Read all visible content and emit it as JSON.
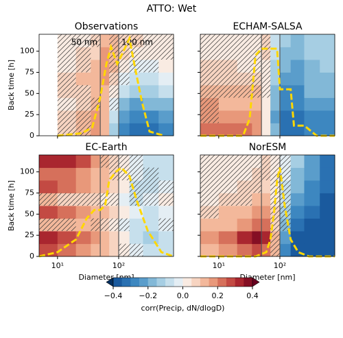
{
  "chart_data": {
    "type": "heatmap",
    "title": "ATTO: Wet",
    "xlabel": "Diameter [nm]",
    "ylabel": "Back time [h]",
    "log_x": true,
    "xlim": [
      5,
      790
    ],
    "ylim": [
      0,
      120
    ],
    "xticks": [
      {
        "value": 10,
        "label": "10¹"
      },
      {
        "value": 100,
        "label": "10²"
      }
    ],
    "yticks": [
      0,
      25,
      50,
      75,
      100
    ],
    "x_edges": [
      5,
      10,
      20,
      35,
      50,
      70,
      100,
      150,
      250,
      450,
      790
    ],
    "y_edges": [
      0,
      15,
      30,
      45,
      60,
      75,
      90,
      105,
      120
    ],
    "hatch_color": "#333333",
    "colorbar": {
      "label": "corr(Precip, dN/dlogD)",
      "levels": [
        -0.4,
        -0.35,
        -0.3,
        -0.25,
        -0.2,
        -0.15,
        -0.1,
        -0.05,
        0,
        0.05,
        0.1,
        0.15,
        0.2,
        0.25,
        0.3,
        0.35,
        0.4
      ],
      "colors": [
        "#1a5a9e",
        "#2a71b2",
        "#3d87c0",
        "#5a9dcb",
        "#82b8d7",
        "#a6cee3",
        "#c6dfec",
        "#e4eef4",
        "#f9ebe2",
        "#f7d4c1",
        "#f3b89b",
        "#e8987a",
        "#d6705b",
        "#c34a43",
        "#a9262f",
        "#850f24"
      ],
      "under": "#053061",
      "over": "#67001f",
      "ticks": [
        {
          "value": -0.4,
          "label": "−0.4"
        },
        {
          "value": -0.2,
          "label": "−0.2"
        },
        {
          "value": 0,
          "label": "0.0"
        },
        0.2,
        0.4
      ]
    },
    "panels": [
      {
        "title": "Observations",
        "annotations": [
          "50 nm",
          "100 nm"
        ],
        "vlines": [
          50,
          100
        ],
        "values": [
          [
            null,
            0.05,
            0.1,
            0.15,
            0.1,
            -0.15,
            -0.3,
            -0.35,
            -0.35,
            -0.3
          ],
          [
            null,
            0.05,
            0.1,
            0.15,
            0.1,
            -0.1,
            -0.25,
            -0.3,
            -0.3,
            -0.25
          ],
          [
            null,
            0.0,
            0.05,
            0.1,
            0.1,
            -0.05,
            -0.2,
            -0.25,
            -0.2,
            -0.2
          ],
          [
            null,
            0.05,
            0.05,
            0.1,
            0.1,
            0.0,
            -0.1,
            -0.15,
            -0.15,
            -0.1
          ],
          [
            null,
            0.05,
            0.1,
            0.1,
            0.15,
            0.05,
            -0.05,
            -0.1,
            -0.1,
            -0.05
          ],
          [
            null,
            0.0,
            0.05,
            0.1,
            0.15,
            0.1,
            0.0,
            -0.05,
            -0.05,
            0.0
          ],
          [
            null,
            0.0,
            0.05,
            0.05,
            0.15,
            0.1,
            0.05,
            0.0,
            0.0,
            0.0
          ],
          [
            null,
            0.0,
            0.0,
            0.05,
            0.1,
            0.1,
            0.05,
            0.05,
            0.0,
            0.0
          ]
        ],
        "hatch": [
          [
            0,
            1,
            1,
            0,
            0,
            0,
            0,
            0,
            0,
            0
          ],
          [
            0,
            1,
            1,
            0,
            0,
            0,
            0,
            0,
            0,
            0
          ],
          [
            0,
            1,
            1,
            1,
            0,
            1,
            0,
            0,
            0,
            0
          ],
          [
            0,
            1,
            1,
            0,
            0,
            1,
            0,
            0,
            0,
            0
          ],
          [
            0,
            1,
            0,
            0,
            0,
            1,
            1,
            0,
            0,
            0
          ],
          [
            0,
            1,
            1,
            0,
            0,
            1,
            1,
            1,
            1,
            0
          ],
          [
            0,
            1,
            1,
            0,
            0,
            1,
            1,
            1,
            1,
            1
          ],
          [
            0,
            1,
            1,
            1,
            0,
            1,
            1,
            1,
            1,
            1
          ]
        ],
        "line": {
          "color": "#ffd700",
          "x": [
            10,
            25,
            37,
            50,
            63,
            75,
            95,
            120,
            150,
            180,
            240,
            320,
            550
          ],
          "y": [
            0,
            3,
            10,
            45,
            85,
            105,
            85,
            100,
            115,
            85,
            40,
            5,
            0
          ]
        }
      },
      {
        "title": "ECHAM-SALSA",
        "vlines": [
          50,
          100
        ],
        "values": [
          [
            0.2,
            0.2,
            0.2,
            0.15,
            0.0,
            -0.2,
            -0.35,
            -0.35,
            -0.3,
            -0.3
          ],
          [
            0.15,
            0.15,
            0.15,
            0.15,
            0.0,
            -0.25,
            -0.35,
            -0.35,
            -0.3,
            -0.3
          ],
          [
            0.15,
            0.1,
            0.1,
            0.1,
            0.0,
            -0.2,
            -0.3,
            -0.3,
            -0.25,
            -0.25
          ],
          [
            0.1,
            0.1,
            0.1,
            0.1,
            0.0,
            -0.2,
            -0.3,
            -0.3,
            -0.2,
            -0.2
          ],
          [
            0.05,
            0.05,
            0.05,
            0.05,
            0.0,
            -0.15,
            -0.25,
            -0.25,
            -0.2,
            -0.2
          ],
          [
            0.05,
            0.05,
            0.0,
            0.0,
            0.0,
            -0.15,
            -0.2,
            -0.25,
            -0.2,
            -0.15
          ],
          [
            0.0,
            0.0,
            0.0,
            0.0,
            0.05,
            -0.1,
            -0.2,
            -0.2,
            -0.15,
            -0.15
          ],
          [
            0.0,
            0.0,
            0.0,
            0.0,
            0.05,
            -0.1,
            -0.15,
            -0.2,
            -0.15,
            -0.15
          ]
        ],
        "hatch": [
          [
            0,
            0,
            0,
            0,
            0,
            0,
            0,
            0,
            0,
            0
          ],
          [
            1,
            0,
            0,
            0,
            0,
            0,
            0,
            0,
            0,
            0
          ],
          [
            1,
            0,
            0,
            0,
            0,
            0,
            0,
            0,
            0,
            0
          ],
          [
            1,
            1,
            1,
            1,
            1,
            0,
            0,
            0,
            0,
            0
          ],
          [
            1,
            1,
            1,
            1,
            1,
            0,
            0,
            0,
            0,
            0
          ],
          [
            1,
            1,
            1,
            1,
            1,
            0,
            0,
            0,
            0,
            0
          ],
          [
            1,
            1,
            1,
            1,
            1,
            0,
            0,
            0,
            0,
            0
          ],
          [
            1,
            1,
            1,
            1,
            1,
            0,
            0,
            0,
            0,
            0
          ]
        ],
        "line": {
          "color": "#ffd700",
          "x": [
            5,
            25,
            32,
            40,
            50,
            90,
            100,
            150,
            170,
            250,
            400,
            790
          ],
          "y": [
            0,
            0,
            20,
            95,
            103,
            103,
            55,
            55,
            12,
            12,
            0,
            0
          ]
        }
      },
      {
        "title": "EC-Earth",
        "vlines": [
          50,
          100
        ],
        "values": [
          [
            0.25,
            0.2,
            0.15,
            0.1,
            0.1,
            0.05,
            0.0,
            -0.05,
            -0.1,
            -0.1
          ],
          [
            0.3,
            0.25,
            0.2,
            0.15,
            0.1,
            0.05,
            0.0,
            -0.1,
            -0.15,
            -0.1
          ],
          [
            0.1,
            0.1,
            0.1,
            0.1,
            0.05,
            0.0,
            -0.05,
            -0.1,
            -0.1,
            -0.05
          ],
          [
            0.25,
            0.2,
            0.15,
            0.1,
            0.1,
            0.05,
            0.0,
            -0.05,
            -0.1,
            -0.05
          ],
          [
            0.1,
            0.05,
            0.05,
            0.05,
            0.0,
            0.0,
            -0.05,
            -0.1,
            -0.05,
            0.0
          ],
          [
            0.25,
            0.2,
            0.15,
            0.1,
            0.1,
            0.05,
            0.0,
            -0.1,
            -0.1,
            -0.05
          ],
          [
            0.2,
            0.2,
            0.15,
            0.1,
            0.1,
            0.05,
            0.0,
            -0.05,
            -0.1,
            -0.1
          ],
          [
            0.3,
            0.3,
            0.25,
            0.15,
            0.1,
            0.05,
            0.0,
            -0.05,
            -0.1,
            -0.1
          ]
        ],
        "hatch": [
          [
            0,
            0,
            0,
            0,
            0,
            0,
            1,
            1,
            0,
            0
          ],
          [
            0,
            0,
            0,
            0,
            0,
            0,
            0,
            0,
            0,
            0
          ],
          [
            1,
            1,
            0,
            1,
            1,
            1,
            1,
            0,
            0,
            1
          ],
          [
            0,
            0,
            0,
            0,
            0,
            0,
            0,
            0,
            0,
            0
          ],
          [
            1,
            1,
            1,
            1,
            1,
            1,
            0,
            1,
            1,
            1
          ],
          [
            0,
            0,
            0,
            0,
            0,
            0,
            0,
            1,
            1,
            1
          ],
          [
            0,
            0,
            0,
            0,
            0,
            1,
            1,
            1,
            1,
            0
          ],
          [
            0,
            0,
            0,
            0,
            1,
            1,
            1,
            1,
            0,
            0
          ]
        ],
        "line": {
          "color": "#ffd700",
          "x": [
            5,
            10,
            20,
            30,
            40,
            50,
            60,
            70,
            90,
            110,
            150,
            200,
            300,
            500,
            790
          ],
          "y": [
            0,
            5,
            20,
            45,
            55,
            55,
            60,
            90,
            100,
            105,
            95,
            65,
            30,
            5,
            0
          ]
        }
      },
      {
        "title": "NorESM",
        "vlines": [
          50,
          100
        ],
        "values": [
          [
            0.1,
            0.15,
            0.2,
            0.25,
            0.2,
            0.1,
            -0.3,
            -0.4,
            -0.4,
            -0.4
          ],
          [
            0.15,
            0.2,
            0.3,
            0.35,
            0.3,
            0.1,
            -0.25,
            -0.4,
            -0.4,
            -0.4
          ],
          [
            0.1,
            0.1,
            0.15,
            0.2,
            0.2,
            0.05,
            -0.2,
            -0.35,
            -0.4,
            -0.4
          ],
          [
            0.05,
            0.1,
            0.1,
            0.15,
            0.15,
            0.05,
            -0.15,
            -0.3,
            -0.35,
            -0.4
          ],
          [
            0.0,
            0.05,
            0.05,
            0.1,
            0.1,
            0.0,
            -0.1,
            -0.25,
            -0.3,
            -0.4
          ],
          [
            0.0,
            0.0,
            0.05,
            0.05,
            0.05,
            0.0,
            -0.1,
            -0.2,
            -0.3,
            -0.35
          ],
          [
            0.0,
            0.0,
            0.0,
            0.05,
            0.05,
            0.0,
            -0.05,
            -0.2,
            -0.25,
            -0.35
          ],
          [
            0.0,
            0.0,
            0.0,
            0.0,
            0.05,
            0.0,
            -0.05,
            -0.15,
            -0.25,
            -0.35
          ]
        ],
        "hatch": [
          [
            0,
            0,
            0,
            0,
            0,
            1,
            0,
            0,
            0,
            0
          ],
          [
            0,
            0,
            0,
            0,
            0,
            1,
            0,
            0,
            0,
            0
          ],
          [
            0,
            0,
            0,
            0,
            0,
            1,
            1,
            0,
            0,
            0
          ],
          [
            1,
            0,
            0,
            0,
            0,
            1,
            1,
            0,
            0,
            0
          ],
          [
            1,
            1,
            1,
            0,
            0,
            1,
            1,
            0,
            0,
            0
          ],
          [
            1,
            1,
            1,
            1,
            0,
            1,
            1,
            0,
            0,
            0
          ],
          [
            1,
            1,
            1,
            1,
            1,
            1,
            1,
            0,
            0,
            0
          ],
          [
            1,
            1,
            1,
            1,
            1,
            1,
            1,
            0,
            0,
            0
          ]
        ],
        "line": {
          "color": "#ffd700",
          "x": [
            5,
            20,
            40,
            60,
            70,
            80,
            90,
            100,
            120,
            150,
            200,
            300,
            790
          ],
          "y": [
            0,
            0,
            0,
            5,
            20,
            50,
            90,
            105,
            60,
            20,
            5,
            0,
            0
          ]
        }
      }
    ]
  }
}
